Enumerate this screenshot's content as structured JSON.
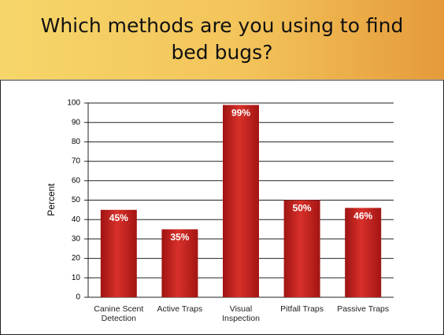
{
  "chart_data": {
    "type": "bar",
    "title": "Which methods are you using to find bed bugs?",
    "y_label": "Percent",
    "categories": [
      "Canine Scent Detection",
      "Active Traps",
      "Visual Inspection",
      "Pitfall Traps",
      "Passive Traps"
    ],
    "values": [
      45,
      35,
      99,
      50,
      46
    ],
    "value_labels": [
      "45%",
      "35%",
      "99%",
      "50%",
      "46%"
    ],
    "color": "#c8201e",
    "ylim": [
      0,
      100
    ],
    "yticks": [
      0,
      10,
      20,
      30,
      40,
      50,
      60,
      70,
      80,
      90,
      100
    ],
    "grid": true
  }
}
